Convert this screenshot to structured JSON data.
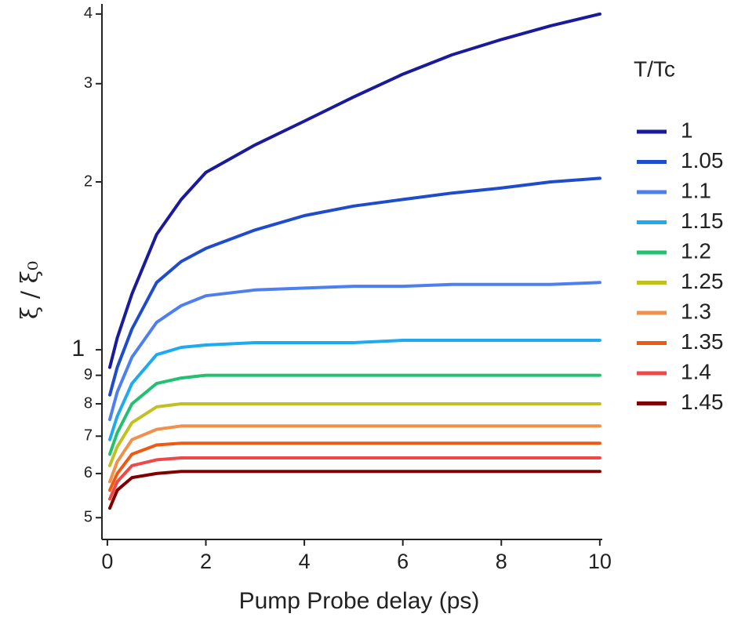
{
  "chart_data": {
    "type": "line",
    "x_label": "Pump Probe delay (ps)",
    "y_label": "ξ / ξ₀",
    "legend_title": "T/Tc",
    "legend_position": "right",
    "y_scale": "log",
    "xlim": [
      -0.11,
      10.05
    ],
    "ylim": [
      0.457,
      4.17
    ],
    "xticks": [
      0,
      2,
      4,
      6,
      8,
      10
    ],
    "yticks": [
      {
        "value": 0.5,
        "label": "5"
      },
      {
        "value": 0.6,
        "label": "6"
      },
      {
        "value": 0.7,
        "label": "7"
      },
      {
        "value": 0.8,
        "label": "8"
      },
      {
        "value": 0.9,
        "label": "9"
      },
      1,
      2,
      3,
      4
    ],
    "x": [
      0.05,
      0.2,
      0.5,
      1,
      1.5,
      2,
      3,
      4,
      5,
      6,
      7,
      8,
      9,
      10
    ],
    "series": [
      {
        "name": "1",
        "color": "#1a1a9c",
        "values": [
          0.93,
          1.05,
          1.26,
          1.61,
          1.86,
          2.08,
          2.33,
          2.57,
          2.84,
          3.12,
          3.38,
          3.6,
          3.81,
          4.0
        ]
      },
      {
        "name": "1.05",
        "color": "#1f4ccc",
        "values": [
          0.83,
          0.93,
          1.09,
          1.32,
          1.44,
          1.52,
          1.64,
          1.74,
          1.81,
          1.86,
          1.91,
          1.95,
          2.0,
          2.03
        ]
      },
      {
        "name": "1.1",
        "color": "#4d7ff0",
        "values": [
          0.75,
          0.84,
          0.97,
          1.12,
          1.2,
          1.25,
          1.28,
          1.29,
          1.3,
          1.3,
          1.31,
          1.31,
          1.31,
          1.32
        ]
      },
      {
        "name": "1.15",
        "color": "#1eaaf0",
        "values": [
          0.69,
          0.76,
          0.87,
          0.98,
          1.01,
          1.02,
          1.03,
          1.03,
          1.03,
          1.04,
          1.04,
          1.04,
          1.04,
          1.04
        ]
      },
      {
        "name": "1.2",
        "color": "#22c070",
        "values": [
          0.65,
          0.71,
          0.8,
          0.87,
          0.89,
          0.9,
          0.9,
          0.9,
          0.9,
          0.9,
          0.9,
          0.9,
          0.9,
          0.9
        ]
      },
      {
        "name": "1.25",
        "color": "#c0c020",
        "values": [
          0.62,
          0.67,
          0.74,
          0.79,
          0.8,
          0.8,
          0.8,
          0.8,
          0.8,
          0.8,
          0.8,
          0.8,
          0.8,
          0.8
        ]
      },
      {
        "name": "1.3",
        "color": "#f0904a",
        "values": [
          0.58,
          0.63,
          0.69,
          0.72,
          0.73,
          0.73,
          0.73,
          0.73,
          0.73,
          0.73,
          0.73,
          0.73,
          0.73,
          0.73
        ]
      },
      {
        "name": "1.35",
        "color": "#f05a10",
        "values": [
          0.56,
          0.6,
          0.65,
          0.675,
          0.68,
          0.68,
          0.68,
          0.68,
          0.68,
          0.68,
          0.68,
          0.68,
          0.68,
          0.68
        ]
      },
      {
        "name": "1.4",
        "color": "#f04848",
        "values": [
          0.54,
          0.58,
          0.62,
          0.635,
          0.64,
          0.64,
          0.64,
          0.64,
          0.64,
          0.64,
          0.64,
          0.64,
          0.64,
          0.64
        ]
      },
      {
        "name": "1.45",
        "color": "#800000",
        "values": [
          0.52,
          0.56,
          0.59,
          0.6,
          0.605,
          0.605,
          0.605,
          0.605,
          0.605,
          0.605,
          0.605,
          0.605,
          0.605,
          0.605
        ]
      }
    ]
  }
}
